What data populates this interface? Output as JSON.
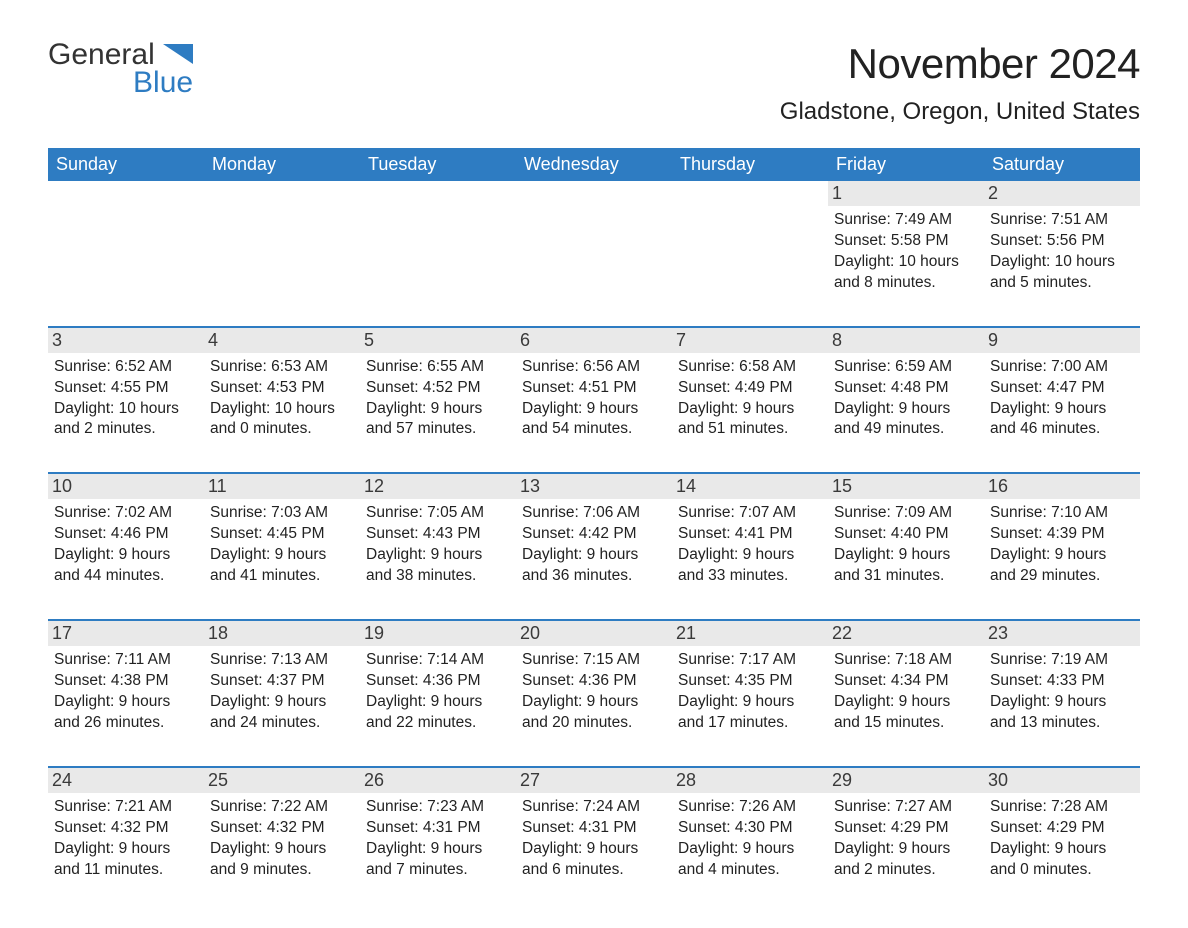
{
  "logo": {
    "word1": "General",
    "word2": "Blue",
    "flag_color": "#2e7cc2"
  },
  "colors": {
    "header_bg": "#2e7cc2",
    "daynum_bg": "#e9e9e9",
    "week_border": "#2e7cc2",
    "text": "#222222"
  },
  "typography": {
    "title_fontsize": 42,
    "location_fontsize": 24,
    "weekday_fontsize": 18,
    "body_fontsize": 15.5
  },
  "header": {
    "month_title": "November 2024",
    "location": "Gladstone, Oregon, United States"
  },
  "weekdays": [
    "Sunday",
    "Monday",
    "Tuesday",
    "Wednesday",
    "Thursday",
    "Friday",
    "Saturday"
  ],
  "labels": {
    "sunrise": "Sunrise: ",
    "sunset": "Sunset: ",
    "daylight": "Daylight: "
  },
  "weeks": [
    [
      {
        "empty": true
      },
      {
        "empty": true
      },
      {
        "empty": true
      },
      {
        "empty": true
      },
      {
        "empty": true
      },
      {
        "day": "1",
        "sunrise": "7:49 AM",
        "sunset": "5:58 PM",
        "daylight": "10 hours and 8 minutes."
      },
      {
        "day": "2",
        "sunrise": "7:51 AM",
        "sunset": "5:56 PM",
        "daylight": "10 hours and 5 minutes."
      }
    ],
    [
      {
        "day": "3",
        "sunrise": "6:52 AM",
        "sunset": "4:55 PM",
        "daylight": "10 hours and 2 minutes."
      },
      {
        "day": "4",
        "sunrise": "6:53 AM",
        "sunset": "4:53 PM",
        "daylight": "10 hours and 0 minutes."
      },
      {
        "day": "5",
        "sunrise": "6:55 AM",
        "sunset": "4:52 PM",
        "daylight": "9 hours and 57 minutes."
      },
      {
        "day": "6",
        "sunrise": "6:56 AM",
        "sunset": "4:51 PM",
        "daylight": "9 hours and 54 minutes."
      },
      {
        "day": "7",
        "sunrise": "6:58 AM",
        "sunset": "4:49 PM",
        "daylight": "9 hours and 51 minutes."
      },
      {
        "day": "8",
        "sunrise": "6:59 AM",
        "sunset": "4:48 PM",
        "daylight": "9 hours and 49 minutes."
      },
      {
        "day": "9",
        "sunrise": "7:00 AM",
        "sunset": "4:47 PM",
        "daylight": "9 hours and 46 minutes."
      }
    ],
    [
      {
        "day": "10",
        "sunrise": "7:02 AM",
        "sunset": "4:46 PM",
        "daylight": "9 hours and 44 minutes."
      },
      {
        "day": "11",
        "sunrise": "7:03 AM",
        "sunset": "4:45 PM",
        "daylight": "9 hours and 41 minutes."
      },
      {
        "day": "12",
        "sunrise": "7:05 AM",
        "sunset": "4:43 PM",
        "daylight": "9 hours and 38 minutes."
      },
      {
        "day": "13",
        "sunrise": "7:06 AM",
        "sunset": "4:42 PM",
        "daylight": "9 hours and 36 minutes."
      },
      {
        "day": "14",
        "sunrise": "7:07 AM",
        "sunset": "4:41 PM",
        "daylight": "9 hours and 33 minutes."
      },
      {
        "day": "15",
        "sunrise": "7:09 AM",
        "sunset": "4:40 PM",
        "daylight": "9 hours and 31 minutes."
      },
      {
        "day": "16",
        "sunrise": "7:10 AM",
        "sunset": "4:39 PM",
        "daylight": "9 hours and 29 minutes."
      }
    ],
    [
      {
        "day": "17",
        "sunrise": "7:11 AM",
        "sunset": "4:38 PM",
        "daylight": "9 hours and 26 minutes."
      },
      {
        "day": "18",
        "sunrise": "7:13 AM",
        "sunset": "4:37 PM",
        "daylight": "9 hours and 24 minutes."
      },
      {
        "day": "19",
        "sunrise": "7:14 AM",
        "sunset": "4:36 PM",
        "daylight": "9 hours and 22 minutes."
      },
      {
        "day": "20",
        "sunrise": "7:15 AM",
        "sunset": "4:36 PM",
        "daylight": "9 hours and 20 minutes."
      },
      {
        "day": "21",
        "sunrise": "7:17 AM",
        "sunset": "4:35 PM",
        "daylight": "9 hours and 17 minutes."
      },
      {
        "day": "22",
        "sunrise": "7:18 AM",
        "sunset": "4:34 PM",
        "daylight": "9 hours and 15 minutes."
      },
      {
        "day": "23",
        "sunrise": "7:19 AM",
        "sunset": "4:33 PM",
        "daylight": "9 hours and 13 minutes."
      }
    ],
    [
      {
        "day": "24",
        "sunrise": "7:21 AM",
        "sunset": "4:32 PM",
        "daylight": "9 hours and 11 minutes."
      },
      {
        "day": "25",
        "sunrise": "7:22 AM",
        "sunset": "4:32 PM",
        "daylight": "9 hours and 9 minutes."
      },
      {
        "day": "26",
        "sunrise": "7:23 AM",
        "sunset": "4:31 PM",
        "daylight": "9 hours and 7 minutes."
      },
      {
        "day": "27",
        "sunrise": "7:24 AM",
        "sunset": "4:31 PM",
        "daylight": "9 hours and 6 minutes."
      },
      {
        "day": "28",
        "sunrise": "7:26 AM",
        "sunset": "4:30 PM",
        "daylight": "9 hours and 4 minutes."
      },
      {
        "day": "29",
        "sunrise": "7:27 AM",
        "sunset": "4:29 PM",
        "daylight": "9 hours and 2 minutes."
      },
      {
        "day": "30",
        "sunrise": "7:28 AM",
        "sunset": "4:29 PM",
        "daylight": "9 hours and 0 minutes."
      }
    ]
  ]
}
